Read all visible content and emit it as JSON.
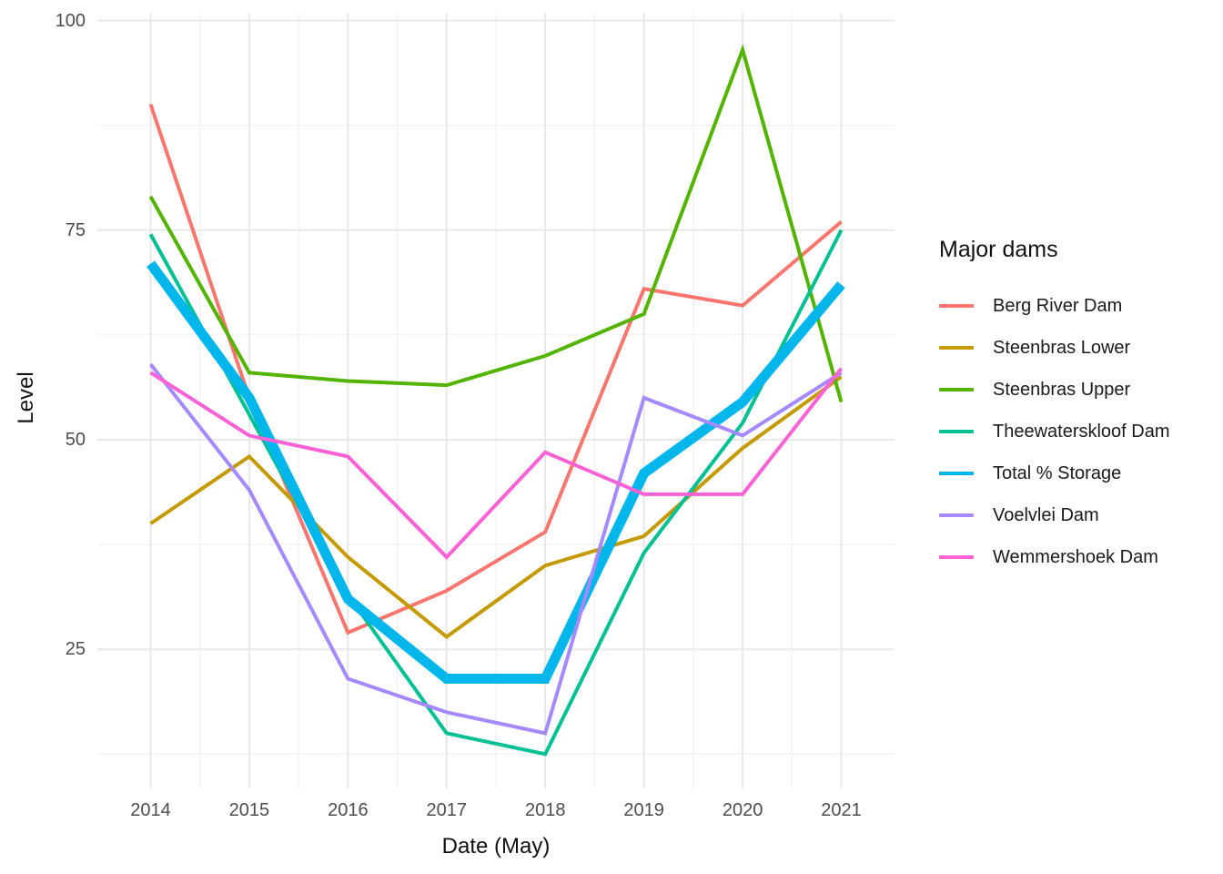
{
  "legend": {
    "title": "Major dams",
    "items": [
      {
        "label": "Berg River Dam",
        "color": "#F8766D"
      },
      {
        "label": "Steenbras Lower",
        "color": "#C49A00"
      },
      {
        "label": "Steenbras Upper",
        "color": "#53B400"
      },
      {
        "label": "Theewaterskloof Dam",
        "color": "#00C094"
      },
      {
        "label": "Total % Storage",
        "color": "#00B6EB"
      },
      {
        "label": "Voelvlei Dam",
        "color": "#A58AFF"
      },
      {
        "label": "Wemmershoek Dam",
        "color": "#FB61D7"
      }
    ]
  },
  "chart_data": {
    "type": "line",
    "title": "",
    "xlabel": "Date (May)",
    "ylabel": "Level",
    "x": [
      2014,
      2015,
      2016,
      2017,
      2018,
      2019,
      2020,
      2021
    ],
    "y_tick_labels": [
      "100",
      "75",
      "50",
      "25"
    ],
    "y_tick_values": [
      100,
      75,
      50,
      25
    ],
    "y_minor_gridlines": [
      87.5,
      62.5,
      37.5,
      12.5
    ],
    "ylim": [
      8,
      101
    ],
    "grid": true,
    "panel_background": "#ffffff",
    "gridline_color": "#e8e8e8",
    "legend_position": "right",
    "series": [
      {
        "name": "Berg River Dam",
        "color": "#F8766D",
        "line_width": 4,
        "values": [
          90,
          55,
          27,
          32,
          39,
          68,
          66,
          76
        ]
      },
      {
        "name": "Steenbras Lower",
        "color": "#C49A00",
        "line_width": 4,
        "values": [
          40,
          48,
          36,
          26.5,
          35,
          38.5,
          49,
          57.5
        ]
      },
      {
        "name": "Steenbras Upper",
        "color": "#53B400",
        "line_width": 4,
        "values": [
          79,
          58,
          57,
          56.5,
          60,
          65,
          96.5,
          54.5
        ]
      },
      {
        "name": "Theewaterskloof Dam",
        "color": "#00C094",
        "line_width": 4,
        "values": [
          74.5,
          53,
          31.5,
          15,
          12.5,
          36.5,
          52,
          75
        ]
      },
      {
        "name": "Total % Storage",
        "color": "#00B6EB",
        "line_width": 11,
        "values": [
          71,
          55,
          31,
          21.5,
          21.5,
          46,
          54.5,
          68.5
        ]
      },
      {
        "name": "Voelvlei Dam",
        "color": "#A58AFF",
        "line_width": 4,
        "values": [
          59,
          44,
          21.5,
          17.5,
          15,
          55,
          50.5,
          58
        ]
      },
      {
        "name": "Wemmershoek Dam",
        "color": "#FB61D7",
        "line_width": 4,
        "values": [
          58,
          50.5,
          48,
          36,
          48.5,
          43.5,
          43.5,
          58.5
        ]
      }
    ]
  }
}
